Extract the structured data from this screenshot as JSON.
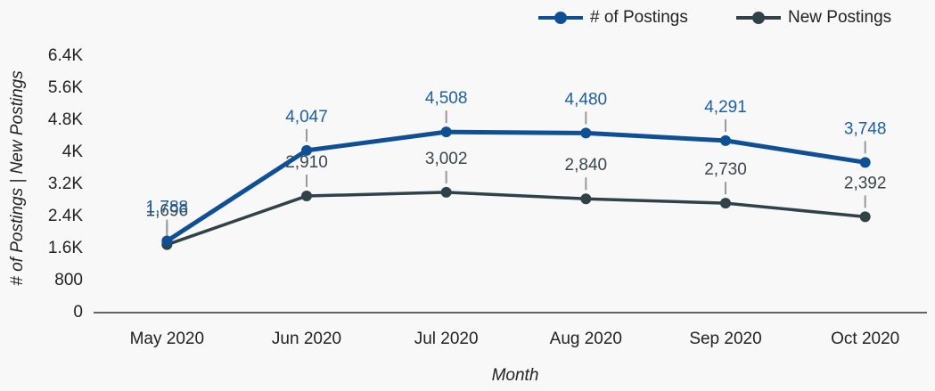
{
  "chart_data": {
    "type": "line",
    "x_label": "Month",
    "y_label": "# of Postings | New Postings",
    "categories": [
      "May 2020",
      "Jun 2020",
      "Jul 2020",
      "Aug 2020",
      "Sep 2020",
      "Oct 2020"
    ],
    "series": [
      {
        "name": "# of Postings",
        "color": "#0f4f96",
        "label_color": "#1d5fa5",
        "values": [
          1788,
          4047,
          4508,
          4480,
          4291,
          3748
        ],
        "value_labels": [
          "1,788",
          "4,047",
          "4,508",
          "4,480",
          "4,291",
          "3,748"
        ]
      },
      {
        "name": "New Postings",
        "color": "#2e4247",
        "label_color": "#3a474c",
        "values": [
          1696,
          2910,
          3002,
          2840,
          2730,
          2392
        ],
        "value_labels": [
          "1,696",
          "2,910",
          "3,002",
          "2,840",
          "2,730",
          "2,392"
        ]
      }
    ],
    "ylim": [
      0,
      6400
    ],
    "yticks": [
      0,
      800,
      {
        "value": 1600,
        "label": "1.6K"
      },
      {
        "value": 2400,
        "label": "2.4K"
      },
      {
        "value": 3200,
        "label": "3.2K"
      },
      {
        "value": 4000,
        "label": "4K"
      },
      {
        "value": 4800,
        "label": "4.8K"
      },
      {
        "value": 5600,
        "label": "5.6K"
      },
      {
        "value": 6400,
        "label": "6.4K"
      }
    ],
    "legend": "top-right"
  }
}
